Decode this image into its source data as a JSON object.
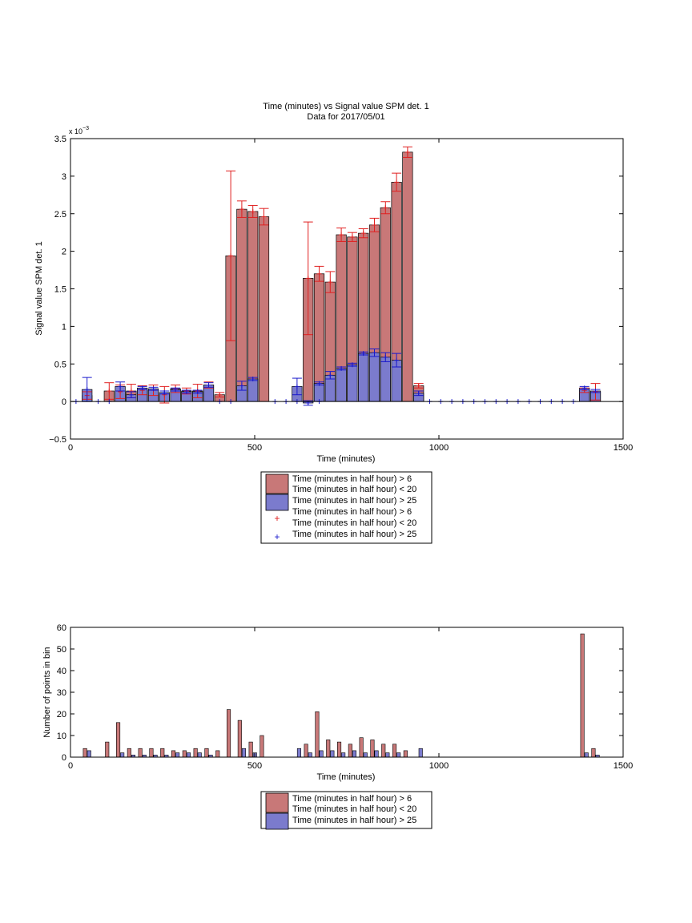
{
  "chart_data": [
    {
      "type": "bar",
      "title_line1": "Time (minutes) vs Signal value SPM det. 1",
      "title_line2": "Data for 2017/05/01",
      "xlabel": "Time (minutes)",
      "ylabel": "Signal value SPM det. 1",
      "exponent_base": "x 10",
      "exponent_power": "−3",
      "xlim": [
        0,
        1500
      ],
      "ylim": [
        -0.5,
        3.5
      ],
      "x_ticks": [
        0,
        500,
        1000,
        1500
      ],
      "y_ticks": [
        -0.5,
        0,
        0.5,
        1,
        1.5,
        2,
        2.5,
        3,
        3.5
      ],
      "y_tick_labels": [
        "−0.5",
        "0",
        "0.5",
        "1",
        "1.5",
        "2",
        "2.5",
        "3",
        "3.5"
      ],
      "grid": false,
      "legend_placement": "below plot",
      "legend": [
        {
          "line1": "Time (minutes in half hour) > 6",
          "line2": "Time (minutes in half hour) < 20",
          "kind": "bar",
          "color": "#c87878"
        },
        {
          "line1": "Time (minutes in half hour) > 25",
          "kind": "bar",
          "color": "#7b7bcd"
        },
        {
          "line1": "Time (minutes in half hour) > 6",
          "line2": "Time (minutes in half hour) < 20",
          "kind": "marker",
          "color": "#e02020"
        },
        {
          "line1": "Time (minutes in half hour) > 25",
          "kind": "marker",
          "color": "#1a1acc"
        }
      ],
      "series": [
        {
          "color": "#c87878",
          "marker_color": "#e02020",
          "points": [
            {
              "x": 45,
              "y": 0.08,
              "err": 0.05
            },
            {
              "x": 105,
              "y": 0.14,
              "err": 0.11
            },
            {
              "x": 135,
              "y": 0.13,
              "err": 0.09
            },
            {
              "x": 165,
              "y": 0.14,
              "err": 0.09
            },
            {
              "x": 195,
              "y": 0.15,
              "err": 0.06
            },
            {
              "x": 225,
              "y": 0.15,
              "err": 0.07
            },
            {
              "x": 255,
              "y": 0.09,
              "err": 0.11
            },
            {
              "x": 285,
              "y": 0.17,
              "err": 0.05
            },
            {
              "x": 315,
              "y": 0.14,
              "err": 0.04
            },
            {
              "x": 345,
              "y": 0.14,
              "err": 0.09
            },
            {
              "x": 375,
              "y": 0.22,
              "err": 0.04
            },
            {
              "x": 405,
              "y": 0.09,
              "err": 0.03
            },
            {
              "x": 435,
              "y": 1.94,
              "err": 1.13
            },
            {
              "x": 465,
              "y": 2.56,
              "err": 0.11
            },
            {
              "x": 495,
              "y": 2.53,
              "err": 0.08
            },
            {
              "x": 525,
              "y": 2.46,
              "err": 0.11
            },
            {
              "x": 645,
              "y": 1.64,
              "err": 0.75
            },
            {
              "x": 675,
              "y": 1.7,
              "err": 0.1
            },
            {
              "x": 705,
              "y": 1.59,
              "err": 0.14
            },
            {
              "x": 735,
              "y": 2.22,
              "err": 0.09
            },
            {
              "x": 765,
              "y": 2.19,
              "err": 0.06
            },
            {
              "x": 795,
              "y": 2.24,
              "err": 0.06
            },
            {
              "x": 825,
              "y": 2.35,
              "err": 0.09
            },
            {
              "x": 855,
              "y": 2.58,
              "err": 0.08
            },
            {
              "x": 885,
              "y": 2.92,
              "err": 0.12
            },
            {
              "x": 915,
              "y": 3.32,
              "err": 0.07
            },
            {
              "x": 945,
              "y": 0.21,
              "err": 0.03
            },
            {
              "x": 1395,
              "y": 0.15,
              "err": 0.03
            },
            {
              "x": 1425,
              "y": 0.13,
              "err": 0.11
            }
          ]
        },
        {
          "color": "#7b7bcd",
          "marker_color": "#1a1acc",
          "points": [
            {
              "x": 45,
              "y": 0.16,
              "err": 0.16
            },
            {
              "x": 135,
              "y": 0.2,
              "err": 0.06
            },
            {
              "x": 165,
              "y": 0.09,
              "err": 0.04
            },
            {
              "x": 195,
              "y": 0.18,
              "err": 0.02
            },
            {
              "x": 225,
              "y": 0.17,
              "err": 0.02
            },
            {
              "x": 255,
              "y": 0.12,
              "err": 0.02
            },
            {
              "x": 285,
              "y": 0.16,
              "err": 0.02
            },
            {
              "x": 315,
              "y": 0.13,
              "err": 0.02
            },
            {
              "x": 345,
              "y": 0.13,
              "err": 0.02
            },
            {
              "x": 375,
              "y": 0.22,
              "err": 0.03
            },
            {
              "x": 465,
              "y": 0.21,
              "err": 0.06
            },
            {
              "x": 495,
              "y": 0.3,
              "err": 0.02
            },
            {
              "x": 615,
              "y": 0.2,
              "err": 0.11
            },
            {
              "x": 645,
              "y": -0.02,
              "err": 0.03
            },
            {
              "x": 675,
              "y": 0.24,
              "err": 0.02
            },
            {
              "x": 705,
              "y": 0.35,
              "err": 0.05
            },
            {
              "x": 735,
              "y": 0.44,
              "err": 0.02
            },
            {
              "x": 765,
              "y": 0.49,
              "err": 0.02
            },
            {
              "x": 795,
              "y": 0.64,
              "err": 0.02
            },
            {
              "x": 825,
              "y": 0.65,
              "err": 0.05
            },
            {
              "x": 855,
              "y": 0.59,
              "err": 0.06
            },
            {
              "x": 885,
              "y": 0.55,
              "err": 0.09
            },
            {
              "x": 945,
              "y": 0.11,
              "err": 0.03
            },
            {
              "x": 1395,
              "y": 0.18,
              "err": 0.02
            },
            {
              "x": 1425,
              "y": 0.14,
              "err": 0.02
            }
          ]
        }
      ],
      "zero_markers_x": [
        15,
        75,
        105,
        405,
        435,
        555,
        585,
        615,
        675,
        975,
        1005,
        1035,
        1065,
        1095,
        1125,
        1155,
        1185,
        1215,
        1245,
        1275,
        1305,
        1335,
        1365
      ]
    },
    {
      "type": "bar",
      "xlabel": "Time (minutes)",
      "ylabel": "Number of points in bin",
      "xlim": [
        0,
        1500
      ],
      "ylim": [
        0,
        60
      ],
      "x_ticks": [
        0,
        500,
        1000,
        1500
      ],
      "y_ticks": [
        0,
        10,
        20,
        30,
        40,
        50,
        60
      ],
      "grid": false,
      "legend_placement": "below plot",
      "legend": [
        {
          "line1": "Time (minutes in half hour) > 6",
          "line2": "Time (minutes in half hour) < 20",
          "kind": "bar",
          "color": "#c87878"
        },
        {
          "line1": "Time (minutes in half hour) > 25",
          "kind": "bar",
          "color": "#7b7bcd"
        }
      ],
      "series": [
        {
          "color": "#c87878",
          "points": [
            {
              "x": 45,
              "y": 4
            },
            {
              "x": 105,
              "y": 7
            },
            {
              "x": 135,
              "y": 16
            },
            {
              "x": 165,
              "y": 4
            },
            {
              "x": 195,
              "y": 4
            },
            {
              "x": 225,
              "y": 4
            },
            {
              "x": 255,
              "y": 4
            },
            {
              "x": 285,
              "y": 3
            },
            {
              "x": 315,
              "y": 3
            },
            {
              "x": 345,
              "y": 4
            },
            {
              "x": 375,
              "y": 4
            },
            {
              "x": 405,
              "y": 3
            },
            {
              "x": 435,
              "y": 22
            },
            {
              "x": 465,
              "y": 17
            },
            {
              "x": 495,
              "y": 7
            },
            {
              "x": 525,
              "y": 10
            },
            {
              "x": 645,
              "y": 6
            },
            {
              "x": 675,
              "y": 21
            },
            {
              "x": 705,
              "y": 8
            },
            {
              "x": 735,
              "y": 7
            },
            {
              "x": 765,
              "y": 6
            },
            {
              "x": 795,
              "y": 9
            },
            {
              "x": 825,
              "y": 8
            },
            {
              "x": 855,
              "y": 6
            },
            {
              "x": 885,
              "y": 6
            },
            {
              "x": 915,
              "y": 3
            },
            {
              "x": 1395,
              "y": 57
            },
            {
              "x": 1425,
              "y": 4
            }
          ]
        },
        {
          "color": "#7b7bcd",
          "points": [
            {
              "x": 45,
              "y": 3
            },
            {
              "x": 135,
              "y": 2
            },
            {
              "x": 165,
              "y": 1
            },
            {
              "x": 195,
              "y": 1
            },
            {
              "x": 225,
              "y": 1
            },
            {
              "x": 255,
              "y": 1
            },
            {
              "x": 285,
              "y": 2
            },
            {
              "x": 315,
              "y": 2
            },
            {
              "x": 345,
              "y": 2
            },
            {
              "x": 375,
              "y": 1
            },
            {
              "x": 465,
              "y": 4
            },
            {
              "x": 495,
              "y": 2
            },
            {
              "x": 615,
              "y": 4
            },
            {
              "x": 645,
              "y": 2
            },
            {
              "x": 675,
              "y": 3
            },
            {
              "x": 705,
              "y": 3
            },
            {
              "x": 735,
              "y": 2
            },
            {
              "x": 765,
              "y": 3
            },
            {
              "x": 795,
              "y": 2
            },
            {
              "x": 825,
              "y": 3
            },
            {
              "x": 855,
              "y": 2
            },
            {
              "x": 885,
              "y": 2
            },
            {
              "x": 945,
              "y": 4
            },
            {
              "x": 1395,
              "y": 2
            },
            {
              "x": 1425,
              "y": 1
            }
          ]
        }
      ]
    }
  ]
}
